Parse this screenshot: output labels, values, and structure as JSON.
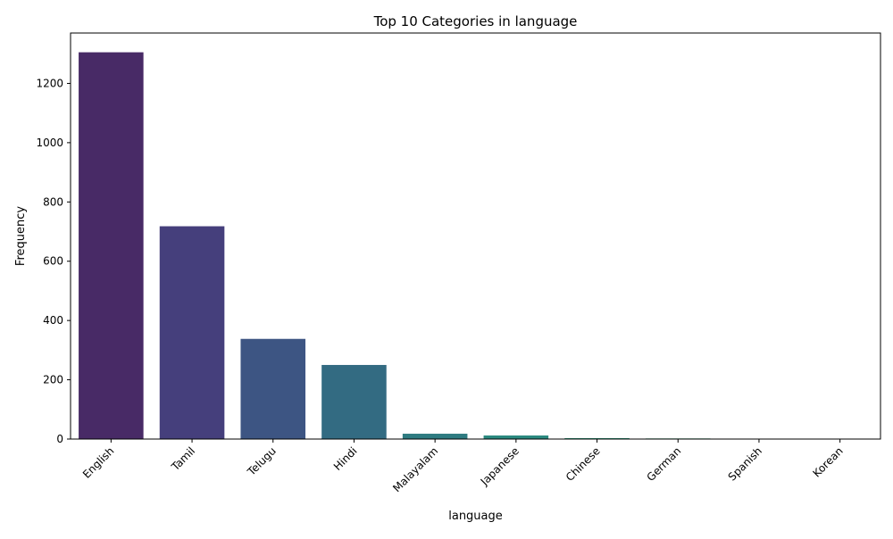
{
  "chart_data": {
    "type": "bar",
    "title": "Top 10 Categories in language",
    "xlabel": "language",
    "ylabel": "Frequency",
    "categories": [
      "English",
      "Tamil",
      "Telugu",
      "Hindi",
      "Malayalam",
      "Japanese",
      "Chinese",
      "German",
      "Spanish",
      "Korean"
    ],
    "values": [
      1305,
      718,
      338,
      250,
      18,
      12,
      3,
      2,
      1,
      1
    ],
    "ylim": [
      0,
      1370
    ],
    "yticks": [
      0,
      200,
      400,
      600,
      800,
      1000,
      1200
    ],
    "ytick_labels": [
      "0",
      "200",
      "400",
      "600",
      "800",
      "1000",
      "1200"
    ],
    "colors": [
      "#482a66",
      "#453f7c",
      "#3d5583",
      "#336b82",
      "#2e7b81",
      "#2a897f",
      "#299877",
      "#30a56f",
      "#3cb465",
      "#51c25a"
    ],
    "grid": false,
    "legend": "none"
  }
}
